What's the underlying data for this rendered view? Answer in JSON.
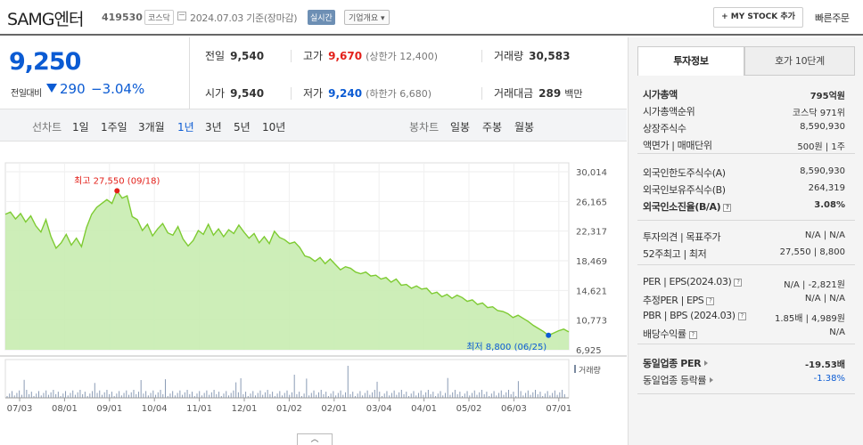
{
  "header": {
    "name": "SAMG엔터",
    "code": "419530",
    "market": "코스닥",
    "as_of": "2024.07.03  기준(장마감)",
    "realtime": "실시간",
    "company_info": "기업개요",
    "mystock": "+ MY STOCK 추가",
    "quick_order": "빠른주문"
  },
  "price": {
    "current": "9,250",
    "change_label": "전일대비",
    "change": "290",
    "change_pct": "−3.04%"
  },
  "stats": {
    "prev_close_label": "전일",
    "prev_close": "9,540",
    "high_label": "고가",
    "high": "9,670",
    "upper_limit": "(상한가 12,400)",
    "volume_label": "거래량",
    "volume": "30,583",
    "open_label": "시가",
    "open": "9,540",
    "low_label": "저가",
    "low": "9,240",
    "lower_limit": "(하한가 6,680)",
    "amount_label": "거래대금",
    "amount": "289",
    "amount_unit": "백만"
  },
  "chart_tabs": {
    "line_label": "선차트",
    "periods": [
      "1일",
      "1주일",
      "3개월",
      "1년",
      "3년",
      "5년",
      "10년"
    ],
    "active": "1년",
    "candle_label": "봉차트",
    "candles": [
      "일봉",
      "주봉",
      "월봉"
    ]
  },
  "chart_data": {
    "type": "area",
    "y_ticks": [
      "30,014",
      "26,165",
      "22,317",
      "18,469",
      "14,621",
      "10,773",
      "6,925"
    ],
    "ylim": [
      6925,
      30014
    ],
    "x_ticks": [
      "07/03",
      "08/01",
      "09/01",
      "10/04",
      "11/01",
      "12/01",
      "01/02",
      "02/01",
      "03/04",
      "04/01",
      "05/02",
      "06/03",
      "07/01"
    ],
    "values": [
      24500,
      24800,
      23900,
      24600,
      23500,
      24300,
      23000,
      22200,
      23800,
      21600,
      20100,
      20800,
      21900,
      20500,
      21400,
      20300,
      22800,
      24500,
      25400,
      25900,
      26400,
      25900,
      27550,
      26600,
      26900,
      24200,
      23800,
      22400,
      23200,
      21700,
      22600,
      23300,
      22100,
      21800,
      22900,
      21300,
      20400,
      21100,
      22400,
      21900,
      23200,
      21800,
      22600,
      21600,
      22500,
      22000,
      23100,
      22200,
      21400,
      22000,
      20800,
      21600,
      20700,
      22300,
      21500,
      21200,
      20700,
      20900,
      20200,
      19100,
      18900,
      18400,
      18900,
      18100,
      18700,
      18000,
      17300,
      17700,
      17500,
      17000,
      16800,
      17000,
      16500,
      16600,
      16100,
      16300,
      15700,
      16100,
      15300,
      15400,
      14900,
      15200,
      14800,
      14900,
      14200,
      14400,
      13800,
      14100,
      13600,
      14000,
      13700,
      13200,
      13400,
      12800,
      13000,
      12400,
      12500,
      12000,
      11900,
      11600,
      11100,
      11400,
      11000,
      10600,
      10100,
      9700,
      9300,
      8800,
      9100,
      9400,
      9600,
      9250
    ],
    "volume_label": "거래량",
    "max_label": "최고 27,550 (09/18)",
    "min_label": "최저 8,800 (06/25)",
    "line_color": "#7ecb32",
    "fill_color": "#c8ecb0"
  },
  "right_panel": {
    "tab_invest": "투자정보",
    "tab_order": "호가 10단계",
    "rows1": [
      {
        "label": "시가총액",
        "value": "795억원",
        "bold": true
      },
      {
        "label": "시가총액순위",
        "value": "코스닥 971위"
      },
      {
        "label": "상장주식수",
        "value": "8,590,930"
      },
      {
        "label": "액면가 | 매매단위",
        "value": "500원 | 1주"
      }
    ],
    "rows2": [
      {
        "label": "외국인한도주식수(A)",
        "value": "8,590,930"
      },
      {
        "label": "외국인보유주식수(B)",
        "value": "264,319"
      },
      {
        "label": "외국인소진율(B/A)",
        "value": "3.08%",
        "bold": true
      }
    ],
    "rows3": [
      {
        "label": "투자의견 | 목표주가",
        "value": "N/A | N/A"
      },
      {
        "label": "52주최고 | 최저",
        "value": "27,550 | 8,800"
      }
    ],
    "rows4": [
      {
        "label": "PER | EPS(2024.03)",
        "value": "N/A | -2,821원"
      },
      {
        "label": "추정PER | EPS",
        "value": "N/A | N/A"
      },
      {
        "label": "PBR | BPS (2024.03)",
        "value": "1.85배 | 4,989원"
      },
      {
        "label": "배당수익률",
        "value": "N/A"
      }
    ],
    "rows5": [
      {
        "label": "동일업종 PER",
        "value": "-19.53배",
        "bold": true
      },
      {
        "label": "동일업종 등락률",
        "value": "-1.38%",
        "blue": true
      }
    ]
  }
}
